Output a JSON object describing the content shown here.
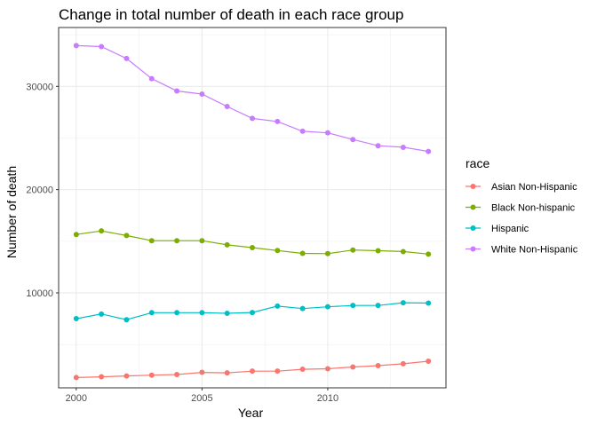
{
  "chart_data": {
    "type": "line",
    "title": "Change in total number of death in each race group",
    "xlabel": "Year",
    "ylabel": "Number of death",
    "x": [
      2000,
      2001,
      2002,
      2003,
      2004,
      2005,
      2006,
      2007,
      2008,
      2009,
      2010,
      2011,
      2012,
      2013,
      2014
    ],
    "xlim": [
      1999.3,
      2014.7
    ],
    "ylim": [
      800,
      35700
    ],
    "x_ticks": [
      2000,
      2005,
      2010
    ],
    "x_tick_labels": [
      "2000",
      "2005",
      "2010"
    ],
    "y_ticks": [
      10000,
      20000,
      30000
    ],
    "y_tick_labels": [
      "10000",
      "20000",
      "30000"
    ],
    "grid": true,
    "legend": {
      "title": "race",
      "position": "right"
    },
    "series": [
      {
        "name": "Asian Non-Hispanic",
        "color": "#F8766D",
        "values": [
          1800,
          1870,
          1950,
          2030,
          2090,
          2300,
          2250,
          2420,
          2420,
          2600,
          2650,
          2820,
          2950,
          3130,
          3380
        ]
      },
      {
        "name": "Black Non-hispanic",
        "color": "#7CAE00",
        "values": [
          15650,
          16000,
          15550,
          15050,
          15050,
          15050,
          14650,
          14380,
          14100,
          13820,
          13800,
          14150,
          14080,
          14000,
          13750
        ]
      },
      {
        "name": "Hispanic",
        "color": "#00BFC4",
        "values": [
          7500,
          7950,
          7400,
          8080,
          8080,
          8080,
          8020,
          8100,
          8720,
          8480,
          8650,
          8780,
          8780,
          9040,
          9010
        ]
      },
      {
        "name": "White Non-Hispanic",
        "color": "#C77CFF",
        "values": [
          33950,
          33850,
          32700,
          30750,
          29550,
          29250,
          28050,
          26900,
          26600,
          25650,
          25500,
          24850,
          24250,
          24100,
          23700
        ]
      }
    ]
  }
}
